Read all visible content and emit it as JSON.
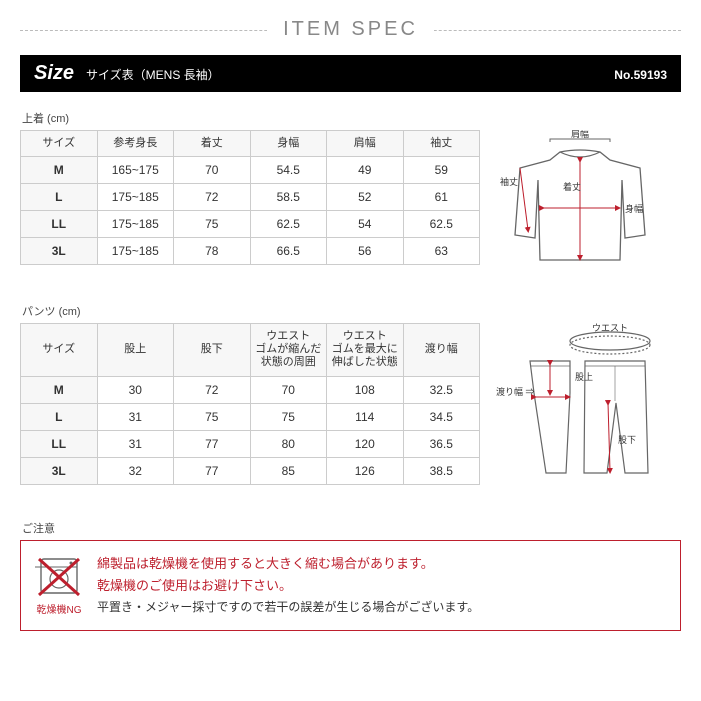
{
  "header": {
    "title": "ITEM SPEC"
  },
  "sizebar": {
    "size_word": "Size",
    "subtitle": "サイズ表（MENS 長袖）",
    "item_no": "No.59193"
  },
  "top": {
    "label": "上着 (cm)",
    "columns": [
      "サイズ",
      "参考身長",
      "着丈",
      "身幅",
      "肩幅",
      "袖丈"
    ],
    "rows": [
      [
        "M",
        "165~175",
        "70",
        "54.5",
        "49",
        "59"
      ],
      [
        "L",
        "175~185",
        "72",
        "58.5",
        "52",
        "61"
      ],
      [
        "LL",
        "175~185",
        "75",
        "62.5",
        "54",
        "62.5"
      ],
      [
        "3L",
        "175~185",
        "78",
        "66.5",
        "56",
        "63"
      ]
    ],
    "diagram_labels": {
      "shoulder": "肩幅",
      "sleeve": "袖丈",
      "length": "着丈",
      "width": "身幅"
    }
  },
  "bottom": {
    "label": "パンツ (cm)",
    "columns": [
      "サイズ",
      "股上",
      "股下",
      "ウエスト\nゴムが縮んだ\n状態の周囲",
      "ウエスト\nゴムを最大に\n伸ばした状態",
      "渡り幅"
    ],
    "rows": [
      [
        "M",
        "30",
        "72",
        "70",
        "108",
        "32.5"
      ],
      [
        "L",
        "31",
        "75",
        "75",
        "114",
        "34.5"
      ],
      [
        "LL",
        "31",
        "77",
        "80",
        "120",
        "36.5"
      ],
      [
        "3L",
        "32",
        "77",
        "85",
        "126",
        "38.5"
      ]
    ],
    "diagram_labels": {
      "waist": "ウエスト",
      "rise": "股上",
      "inseam": "股下",
      "thigh": "渡り幅\n⇒"
    }
  },
  "notice": {
    "label": "ご注意",
    "dryer_ng": "乾燥機NG",
    "line1": "綿製品は乾燥機を使用すると大きく縮む場合があります。",
    "line2": "乾燥機のご使用はお避け下さい。",
    "line3": "平置き・メジャー採寸ですので若干の誤差が生じる場合がございます。"
  },
  "style": {
    "accent": "#bd1f2d",
    "border": "#ccc",
    "header_gray": "#888"
  }
}
